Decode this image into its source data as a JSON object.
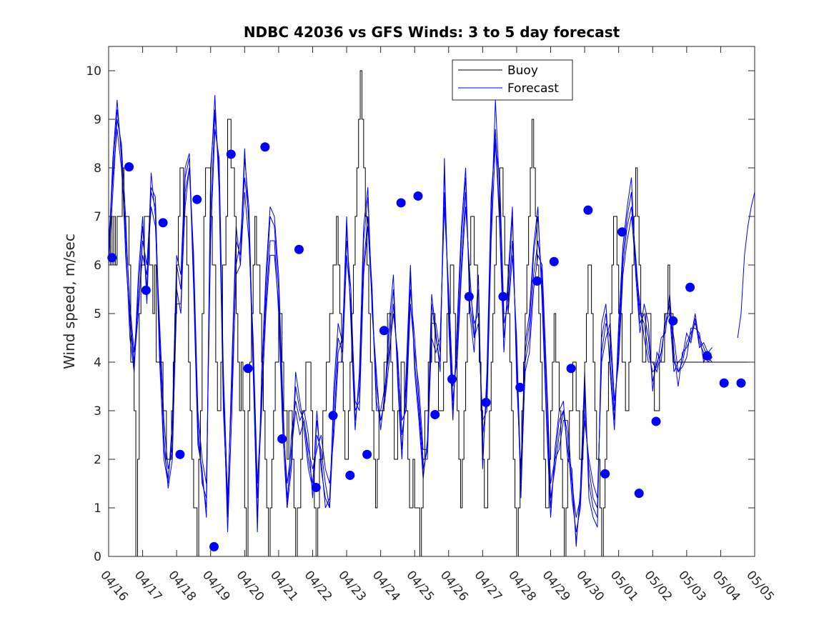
{
  "chart_data": {
    "type": "line",
    "title": "NDBC 42036 vs GFS Winds: 3 to 5 day forecast",
    "xlabel": "",
    "ylabel": "Wind speed, m/sec",
    "xlim": [
      "04/16",
      "05/05"
    ],
    "ylim": [
      0,
      10.5
    ],
    "x_ticks": [
      "04/16",
      "04/17",
      "04/18",
      "04/19",
      "04/20",
      "04/21",
      "04/22",
      "04/23",
      "04/24",
      "04/25",
      "04/26",
      "04/27",
      "04/28",
      "04/29",
      "04/30",
      "05/01",
      "05/02",
      "05/03",
      "05/04",
      "05/05"
    ],
    "y_ticks": [
      "0",
      "1",
      "2",
      "3",
      "4",
      "5",
      "6",
      "7",
      "8",
      "9",
      "10"
    ],
    "legend": {
      "placement": "top-center",
      "entries": [
        "Buoy",
        "Forecast"
      ]
    },
    "colors": {
      "buoy": "#000000",
      "forecast": "#0000ff",
      "markers": "#0000ff"
    },
    "buoy_day_offset": [
      0,
      0.05,
      0.1,
      0.15,
      0.2,
      0.25,
      0.3,
      0.35,
      0.4,
      0.45,
      0.5,
      0.55,
      0.6,
      0.65,
      0.7,
      0.75,
      0.8,
      0.85,
      0.9,
      0.95,
      1,
      1.05,
      1.1,
      1.15,
      1.2,
      1.25,
      1.3,
      1.35,
      1.4,
      1.45,
      1.5,
      1.55,
      1.6,
      1.65,
      1.7,
      1.75,
      1.8,
      1.85,
      1.9,
      1.95,
      2,
      2.05,
      2.1,
      2.15,
      2.2,
      2.25,
      2.3,
      2.35,
      2.4,
      2.45,
      2.5,
      2.55,
      2.6,
      2.65,
      2.7,
      2.75,
      2.8,
      2.85,
      2.9,
      2.95,
      3,
      3.05,
      3.1,
      3.15,
      3.2,
      3.25,
      3.3,
      3.35,
      3.4,
      3.45,
      3.5,
      3.55,
      3.6,
      3.65,
      3.7,
      3.75,
      3.8,
      3.85,
      3.9,
      3.95,
      4,
      4.05,
      4.1,
      4.15,
      4.2,
      4.25,
      4.3,
      4.35,
      4.4,
      4.45,
      4.5,
      4.55,
      4.6,
      4.65,
      4.7,
      4.75,
      4.8,
      4.85,
      4.9,
      4.95,
      5,
      5.05,
      5.1,
      5.15,
      5.2,
      5.25,
      5.3,
      5.35,
      5.4,
      5.45,
      5.5,
      5.55,
      5.6,
      5.65,
      5.7,
      5.75,
      5.8,
      5.85,
      5.9,
      5.95,
      6,
      6.05,
      6.1,
      6.15,
      6.2,
      6.25,
      6.3,
      6.35,
      6.4,
      6.45,
      6.5,
      6.55,
      6.6,
      6.65,
      6.7,
      6.75,
      6.8,
      6.85,
      6.9,
      6.95,
      7,
      7.05,
      7.1,
      7.15,
      7.2,
      7.25,
      7.3,
      7.35,
      7.4,
      7.45,
      7.5,
      7.55,
      7.6,
      7.65,
      7.7,
      7.75,
      7.8,
      7.85,
      7.9,
      7.95,
      8,
      8.05,
      8.1,
      8.15,
      8.2,
      8.25,
      8.3,
      8.35,
      8.4,
      8.45,
      8.5,
      8.55,
      8.6,
      8.65,
      8.7,
      8.75,
      8.8,
      8.85,
      8.9,
      8.95,
      9,
      9.05,
      9.1,
      9.15,
      9.2,
      9.25,
      9.3,
      9.35,
      9.4,
      9.45,
      9.5,
      9.55,
      9.6,
      9.65,
      9.7,
      9.75,
      9.8,
      9.85,
      9.9,
      9.95,
      10,
      10.05,
      10.1,
      10.15,
      10.2,
      10.25,
      10.3,
      10.35,
      10.4,
      10.45,
      10.5,
      10.55,
      10.6,
      10.65,
      10.7,
      10.75,
      10.8,
      10.85,
      10.9,
      10.95,
      11,
      11.05,
      11.1,
      11.15,
      11.2,
      11.25,
      11.3,
      11.35,
      11.4,
      11.45,
      11.5,
      11.55,
      11.6,
      11.65,
      11.7,
      11.75,
      11.8,
      11.85,
      11.9,
      11.95,
      12,
      12.05,
      12.1,
      12.15,
      12.2,
      12.25,
      12.3,
      12.35,
      12.4,
      12.45,
      12.5,
      12.55,
      12.6,
      12.65,
      12.7,
      12.75,
      12.8,
      12.85,
      12.9,
      12.95,
      13,
      13.05,
      13.1,
      13.15,
      13.2,
      13.25,
      13.3,
      13.35,
      13.4,
      13.45,
      13.5,
      13.55,
      13.6,
      13.65,
      13.7,
      13.75,
      13.8,
      13.85,
      13.9,
      13.95,
      14,
      14.05,
      14.1,
      14.15,
      14.2,
      14.25,
      14.3,
      14.35,
      14.4,
      14.45,
      14.5,
      14.55,
      14.6,
      14.65,
      14.7,
      14.75,
      14.8,
      14.85,
      14.9,
      14.95,
      15,
      15.05,
      15.1,
      15.15,
      15.2,
      15.25,
      15.3,
      15.35,
      15.4,
      15.45,
      15.5,
      15.55,
      15.6,
      15.65,
      15.7,
      15.75,
      15.8,
      15.85,
      15.9,
      15.95,
      16,
      16.05,
      16.1,
      16.15,
      16.2,
      16.25,
      16.3,
      16.35,
      16.4,
      16.45,
      16.5,
      16.55,
      16.6,
      16.65,
      16.7,
      16.75,
      16.8,
      16.85,
      16.9,
      16.95,
      17,
      17.05,
      17.1,
      17.15,
      17.2,
      17.25,
      17.3,
      17.35,
      17.4,
      17.45,
      17.5,
      17.55,
      17.6,
      17.65,
      17.7,
      17.75,
      17.8,
      17.85,
      17.9,
      17.95,
      18,
      18.05,
      18.1,
      18.15,
      18.2,
      18.25,
      18.3,
      18.35,
      18.4,
      18.45,
      18.5,
      18.55,
      18.6,
      18.65,
      18.7,
      18.75,
      18.8,
      18.85,
      18.9,
      18.95,
      19
    ],
    "buoy_values": [
      6,
      7,
      6,
      7,
      6,
      7,
      7,
      7,
      8,
      7,
      7,
      7,
      6,
      4,
      4,
      3,
      0,
      2,
      5,
      6,
      6,
      7,
      7,
      7,
      6,
      6,
      5,
      6,
      4,
      4,
      4,
      4,
      3,
      3,
      2,
      2,
      2,
      3,
      4,
      5,
      6,
      7,
      8,
      8,
      7,
      7,
      6,
      4,
      3,
      2,
      1,
      1,
      0,
      2,
      3,
      5,
      7,
      8,
      8,
      8,
      7,
      6,
      6,
      4,
      3,
      3,
      4,
      6,
      6,
      7,
      9,
      9,
      8,
      8,
      7,
      5,
      4,
      3,
      4,
      3,
      1,
      0,
      3,
      4,
      5,
      6,
      7,
      6,
      6,
      5,
      4,
      3,
      2,
      1,
      0,
      1,
      2,
      3,
      4,
      4,
      5,
      5,
      4,
      3,
      3,
      2,
      3,
      3,
      2,
      1,
      0,
      1,
      1,
      2,
      3,
      3,
      4,
      4,
      4,
      3,
      2,
      1,
      0,
      1,
      2,
      2,
      3,
      3,
      4,
      4,
      5,
      5,
      6,
      6,
      7,
      6,
      5,
      4,
      3,
      2,
      2,
      3,
      4,
      5,
      6,
      7,
      8,
      9,
      10,
      9,
      8,
      7,
      6,
      5,
      4,
      3,
      2,
      1,
      2,
      3,
      3,
      3,
      4,
      4,
      5,
      5,
      4,
      3,
      2,
      2,
      3,
      3,
      4,
      4,
      3,
      3,
      2,
      1,
      1,
      2,
      1,
      1,
      1,
      0,
      1,
      2,
      3,
      3,
      4,
      4,
      5,
      5,
      4,
      4,
      3,
      3,
      3,
      4,
      4,
      5,
      5,
      6,
      6,
      5,
      4,
      3,
      2,
      1,
      2,
      3,
      4,
      5,
      6,
      7,
      7,
      6,
      6,
      5,
      4,
      3,
      2,
      1,
      1,
      2,
      3,
      4,
      5,
      6,
      7,
      7,
      8,
      8,
      7,
      6,
      6,
      5,
      4,
      3,
      2,
      1,
      0,
      1,
      2,
      3,
      4,
      5,
      6,
      7,
      8,
      9,
      8,
      7,
      6,
      5,
      4,
      3,
      2,
      1,
      1,
      2,
      3,
      4,
      5,
      4,
      4,
      3,
      2,
      1,
      0,
      1,
      2,
      3,
      3,
      4,
      4,
      3,
      3,
      2,
      2,
      3,
      4,
      5,
      6,
      6,
      5,
      4,
      3,
      2,
      2,
      1,
      0,
      1,
      2,
      3,
      4,
      5,
      6,
      7,
      7,
      6,
      5,
      5,
      4,
      4,
      3,
      3,
      4,
      5,
      6,
      7,
      8,
      7,
      6,
      5,
      4,
      4,
      5,
      5,
      5,
      4,
      4,
      3,
      3,
      3,
      4,
      4,
      4,
      5,
      5,
      6,
      5,
      5,
      4
    ],
    "forecast_day_offset": [
      0,
      0.125,
      0.25,
      0.375,
      0.5,
      0.625,
      0.75,
      0.875,
      1,
      1.125,
      1.25,
      1.375,
      1.5,
      1.625,
      1.75,
      1.875,
      2,
      2.125,
      2.25,
      2.375,
      2.5,
      2.625,
      2.75,
      2.875,
      3,
      3.125,
      3.25,
      3.375,
      3.5,
      3.625,
      3.75,
      3.875,
      4,
      4.125,
      4.25,
      4.375,
      4.5,
      4.625,
      4.75,
      4.875,
      5,
      5.125,
      5.25,
      5.375,
      5.5,
      5.625,
      5.75,
      5.875,
      6,
      6.125,
      6.25,
      6.375,
      6.5,
      6.625,
      6.75,
      6.875,
      7,
      7.125,
      7.25,
      7.375,
      7.5,
      7.625,
      7.75,
      7.875,
      8,
      8.125,
      8.25,
      8.375,
      8.5,
      8.625,
      8.75,
      8.875,
      9,
      9.125,
      9.25,
      9.375,
      9.5,
      9.625,
      9.75,
      9.875,
      10,
      10.125,
      10.25,
      10.375,
      10.5,
      10.625,
      10.75,
      10.875,
      11,
      11.125,
      11.25,
      11.375,
      11.5,
      11.625,
      11.75,
      11.875,
      12,
      12.125,
      12.25,
      12.375,
      12.5,
      12.625,
      12.75,
      12.875,
      13,
      13.125,
      13.25,
      13.375,
      13.5,
      13.625,
      13.75,
      13.875,
      14,
      14.125,
      14.25,
      14.375,
      14.5,
      14.625,
      14.75,
      14.875,
      15,
      15.125,
      15.25,
      15.375,
      15.5,
      15.625,
      15.75,
      15.875,
      16,
      16.125,
      16.25,
      16.375,
      16.5,
      16.625,
      16.75,
      16.875,
      17,
      17.125,
      17.25,
      17.375,
      17.5,
      17.625,
      17.75,
      17.875,
      18,
      18.125,
      18.25,
      18.375,
      18.5,
      18.625,
      18.75,
      18.875,
      19
    ],
    "forecast_runs": [
      [
        6.2,
        8.2,
        9.4,
        8.2,
        6.5,
        4.5,
        3.8,
        5.5,
        6.8,
        5.5,
        7.9,
        7.0,
        4.0,
        2.2,
        1.6,
        2.5,
        6.0,
        5.5,
        7.8,
        8.2,
        5.5,
        2.3,
        1.8,
        0.8,
        7.8,
        9.5,
        7.5,
        3.0,
        1.0,
        3.9,
        6.5,
        6.2,
        8.4,
        6.8,
        3.8,
        0.8,
        3.5,
        5.5,
        7.0,
        6.8,
        5.5,
        3.0,
        1.2,
        2.0,
        3.5,
        3.0,
        2.8,
        2.0,
        1.5,
        2.8,
        2.0,
        1.0,
        1.2,
        3.2,
        4.5,
        4.2,
        6.8,
        5.0,
        2.8,
        3.5,
        6.5,
        7.4,
        5.2,
        3.5,
        2.8,
        3.2,
        4.5,
        5.5,
        3.8,
        2.2,
        3.5,
        5.8,
        4.0,
        3.0,
        1.8,
        2.2,
        5.2,
        4.5,
        4.0,
        8.0,
        5.0,
        3.0,
        4.5,
        6.5,
        7.8,
        5.2,
        4.5,
        5.5,
        2.0,
        3.5,
        7.2,
        8.8,
        7.0,
        4.5,
        5.5,
        7.0,
        3.8,
        1.5,
        4.2,
        4.8,
        6.2,
        7.0,
        5.5,
        3.0,
        1.0,
        2.0,
        2.8,
        3.0,
        2.2,
        1.5,
        0.3,
        1.2,
        3.5,
        1.5,
        1.0,
        0.8,
        4.5,
        5.0,
        4.0,
        2.8,
        4.5,
        6.2,
        7.0,
        7.5,
        6.0,
        4.8,
        5.0,
        4.5,
        3.6,
        4.0,
        4.2,
        4.8,
        5.2,
        4.0,
        3.8,
        4.0,
        4.4,
        4.6,
        4.8,
        4.5,
        4.3,
        4.1,
        4.0
      ],
      [
        6.0,
        7.5,
        9.0,
        8.5,
        7.0,
        5.0,
        4.0,
        5.0,
        6.5,
        6.0,
        7.5,
        7.2,
        4.5,
        2.5,
        1.4,
        2.0,
        5.5,
        5.0,
        7.5,
        8.0,
        6.0,
        2.8,
        1.5,
        1.2,
        7.0,
        9.1,
        8.0,
        3.5,
        0.5,
        3.0,
        6.0,
        6.5,
        7.8,
        7.0,
        4.2,
        1.2,
        3.0,
        5.2,
        6.5,
        6.5,
        5.0,
        2.5,
        1.0,
        2.5,
        3.2,
        2.8,
        3.0,
        2.5,
        1.2,
        2.5,
        2.2,
        1.5,
        1.0,
        2.8,
        4.2,
        4.5,
        6.5,
        5.5,
        3.0,
        3.2,
        6.0,
        7.0,
        5.5,
        3.0,
        3.0,
        3.5,
        4.2,
        5.0,
        4.2,
        2.5,
        3.2,
        5.5,
        4.5,
        3.2,
        2.0,
        2.0,
        4.8,
        4.8,
        4.2,
        7.5,
        5.2,
        3.2,
        4.2,
        6.0,
        7.5,
        5.5,
        4.8,
        5.0,
        2.5,
        3.2,
        6.8,
        9.4,
        7.5,
        4.8,
        5.2,
        6.5,
        4.2,
        1.2,
        4.0,
        4.5,
        5.8,
        6.5,
        5.8,
        3.5,
        1.2,
        1.8,
        2.5,
        3.0,
        2.5,
        1.2,
        0.5,
        1.0,
        3.0,
        1.8,
        1.2,
        1.0,
        4.2,
        4.8,
        4.5,
        3.0,
        4.2,
        6.0,
        6.8,
        7.2,
        6.2,
        5.0,
        4.8,
        4.2,
        3.8,
        3.9,
        4.5,
        4.6,
        5.4,
        4.2,
        3.5,
        4.2,
        4.3,
        4.5,
        5.0,
        4.4,
        4.2,
        4.0,
        4.1
      ],
      [
        6.5,
        7.8,
        8.8,
        8.0,
        6.8,
        5.2,
        4.2,
        5.2,
        6.2,
        5.8,
        7.2,
        6.8,
        4.8,
        2.8,
        1.8,
        2.2,
        5.2,
        5.2,
        7.2,
        8.0,
        6.2,
        3.0,
        2.0,
        1.5,
        6.5,
        8.8,
        8.2,
        3.8,
        1.2,
        3.5,
        5.8,
        6.0,
        7.5,
        6.5,
        4.5,
        1.5,
        3.2,
        5.0,
        6.2,
        6.2,
        5.2,
        2.8,
        1.5,
        2.2,
        3.0,
        2.5,
        2.8,
        2.2,
        1.8,
        2.2,
        2.5,
        1.8,
        1.5,
        2.5,
        4.0,
        4.0,
        6.2,
        5.2,
        3.2,
        3.0,
        5.8,
        6.8,
        5.2,
        3.2,
        2.8,
        3.2,
        4.0,
        5.2,
        4.0,
        2.8,
        3.0,
        5.2,
        4.2,
        3.5,
        2.2,
        2.2,
        4.5,
        4.2,
        4.5,
        7.2,
        5.5,
        3.5,
        4.0,
        5.8,
        7.2,
        5.8,
        4.5,
        4.8,
        2.8,
        3.0,
        6.5,
        8.5,
        7.8,
        5.0,
        5.0,
        6.2,
        4.5,
        1.5,
        3.8,
        4.2,
        5.5,
        6.2,
        6.0,
        3.8,
        1.5,
        2.0,
        2.2,
        2.8,
        2.8,
        1.5,
        0.8,
        1.2,
        2.8,
        2.0,
        1.5,
        1.2,
        4.0,
        4.5,
        4.8,
        3.2,
        4.0,
        5.8,
        6.5,
        7.0,
        6.0,
        5.2,
        4.5,
        4.0,
        4.0,
        3.8,
        4.2,
        4.8,
        5.0,
        4.5,
        3.8,
        3.9,
        4.1,
        4.7,
        4.7,
        4.6,
        4.0,
        4.2,
        4.3
      ],
      [
        6.0,
        8.0,
        9.2,
        8.4,
        6.2,
        4.8,
        3.9,
        5.8,
        7.0,
        5.2,
        7.6,
        7.4,
        4.2,
        2.0,
        1.5,
        2.8,
        6.2,
        5.8,
        8.0,
        8.3,
        5.8,
        2.5,
        1.6,
        1.0,
        8.0,
        9.2,
        7.8,
        3.2,
        0.8,
        4.0,
        6.8,
        6.0,
        8.2,
        7.2,
        4.0,
        0.5,
        3.8,
        5.8,
        7.2,
        7.0,
        5.8,
        3.2,
        1.0,
        1.8,
        3.8,
        3.2,
        2.6,
        1.8,
        1.4,
        3.0,
        1.8,
        1.2,
        1.0,
        3.5,
        4.8,
        4.4,
        7.0,
        4.8,
        2.6,
        3.8,
        6.8,
        7.6,
        5.0,
        3.8,
        2.6,
        3.4,
        4.8,
        5.8,
        3.6,
        2.0,
        3.8,
        6.0,
        3.8,
        2.8,
        1.6,
        2.4,
        5.4,
        4.6,
        3.8,
        8.2,
        4.8,
        2.8,
        4.8,
        6.8,
        8.0,
        5.0,
        4.2,
        5.8,
        1.8,
        3.8,
        7.4,
        8.6,
        6.8,
        4.2,
        5.8,
        7.2,
        3.6,
        1.8,
        4.4,
        5.0,
        6.4,
        7.2,
        5.2,
        2.8,
        0.8,
        2.2,
        3.0,
        3.2,
        2.0,
        1.8,
        0.2,
        1.4,
        3.8,
        1.2,
        0.8,
        0.6,
        4.8,
        5.2,
        3.8,
        2.6,
        4.8,
        6.4,
        7.2,
        7.8,
        5.8,
        4.6,
        5.2,
        4.8,
        3.4,
        4.2,
        4.0,
        5.0,
        5.0,
        3.8,
        4.0,
        4.1,
        4.6,
        4.4,
        4.9,
        4.3,
        4.4,
        4.2,
        4.1
      ]
    ],
    "forecast_tail_day_offset": [
      18.5,
      18.6,
      18.7,
      18.8,
      18.9,
      19
    ],
    "forecast_tail_values": [
      4.5,
      5.0,
      6.2,
      6.8,
      7.2,
      7.5
    ],
    "marker_day_offset": [
      0.1,
      0.6,
      1.1,
      1.6,
      2.1,
      2.6,
      3.1,
      3.6,
      4.1,
      4.6,
      5.1,
      5.6,
      6.1,
      6.6,
      7.1,
      7.6,
      8.1,
      8.6,
      9.1,
      9.6,
      10.1,
      10.6,
      11.1,
      11.6,
      12.1,
      12.6,
      13.1,
      13.6,
      14.1,
      14.6,
      15.1,
      15.6,
      16.1,
      16.6,
      17.1,
      17.6,
      18.1,
      18.6
    ],
    "marker_values": [
      6.15,
      8.02,
      5.48,
      6.87,
      2.1,
      7.35,
      0.2,
      8.28,
      3.87,
      8.43,
      2.42,
      6.32,
      1.42,
      2.9,
      1.67,
      2.1,
      4.65,
      7.28,
      7.42,
      2.92,
      3.65,
      5.35,
      3.17,
      5.35,
      3.48,
      5.67,
      6.07,
      3.87,
      7.13,
      1.7,
      6.68,
      1.3,
      2.78,
      4.85,
      5.54,
      4.13,
      3.57,
      3.57
    ]
  }
}
